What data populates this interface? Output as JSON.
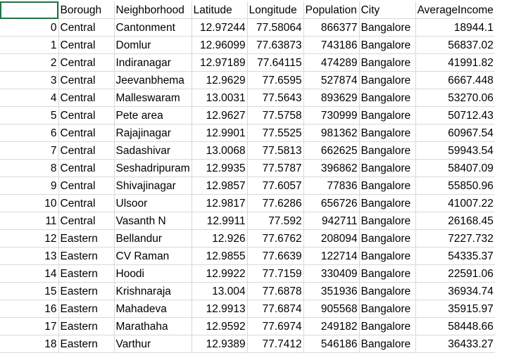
{
  "header": [
    "",
    "Borough",
    "Neighborhood",
    "Latitude",
    "Longitude",
    "Population",
    "City",
    "AverageIncome"
  ],
  "rows": [
    [
      "0",
      "Central",
      "Cantonment",
      "12.97244",
      "77.58064",
      "866377",
      "Bangalore",
      "18944.1"
    ],
    [
      "1",
      "Central",
      "Domlur",
      "12.96099",
      "77.63873",
      "743186",
      "Bangalore",
      "56837.02"
    ],
    [
      "2",
      "Central",
      "Indiranagar",
      "12.97189",
      "77.64115",
      "474289",
      "Bangalore",
      "41991.82"
    ],
    [
      "3",
      "Central",
      "Jeevanbhema",
      "12.9629",
      "77.6595",
      "527874",
      "Bangalore",
      "6667.448"
    ],
    [
      "4",
      "Central",
      "Malleswaram",
      "13.0031",
      "77.5643",
      "893629",
      "Bangalore",
      "53270.06"
    ],
    [
      "5",
      "Central",
      "Pete area",
      "12.9627",
      "77.5758",
      "730999",
      "Bangalore",
      "50712.43"
    ],
    [
      "6",
      "Central",
      "Rajajinagar",
      "12.9901",
      "77.5525",
      "981362",
      "Bangalore",
      "60967.54"
    ],
    [
      "7",
      "Central",
      "Sadashivar",
      "13.0068",
      "77.5813",
      "662625",
      "Bangalore",
      "59943.54"
    ],
    [
      "8",
      "Central",
      "Seshadripuram",
      "12.9935",
      "77.5787",
      "396862",
      "Bangalore",
      "58407.09"
    ],
    [
      "9",
      "Central",
      "Shivajinagar",
      "12.9857",
      "77.6057",
      "77836",
      "Bangalore",
      "55850.96"
    ],
    [
      "10",
      "Central",
      "Ulsoor",
      "12.9817",
      "77.6286",
      "656726",
      "Bangalore",
      "41007.22"
    ],
    [
      "11",
      "Central",
      "Vasanth N",
      "12.9911",
      "77.592",
      "942711",
      "Bangalore",
      "26168.45"
    ],
    [
      "12",
      "Eastern",
      "Bellandur",
      "12.926",
      "77.6762",
      "208094",
      "Bangalore",
      "7227.732"
    ],
    [
      "13",
      "Eastern",
      "CV Raman",
      "12.9855",
      "77.6639",
      "122714",
      "Bangalore",
      "54335.37"
    ],
    [
      "14",
      "Eastern",
      "Hoodi",
      "12.9922",
      "77.7159",
      "330409",
      "Bangalore",
      "22591.06"
    ],
    [
      "15",
      "Eastern",
      "Krishnaraja",
      "13.004",
      "77.6878",
      "351936",
      "Bangalore",
      "36934.74"
    ],
    [
      "16",
      "Eastern",
      "Mahadeva",
      "12.9913",
      "77.6874",
      "905568",
      "Bangalore",
      "35915.97"
    ],
    [
      "17",
      "Eastern",
      "Marathaha",
      "12.9592",
      "77.6974",
      "249182",
      "Bangalore",
      "58448.66"
    ],
    [
      "18",
      "Eastern",
      "Varthur",
      "12.9389",
      "77.7412",
      "546186",
      "Bangalore",
      "36433.27"
    ]
  ],
  "colors": {
    "gridline": "#d9d9d9",
    "selection": "#217346"
  }
}
